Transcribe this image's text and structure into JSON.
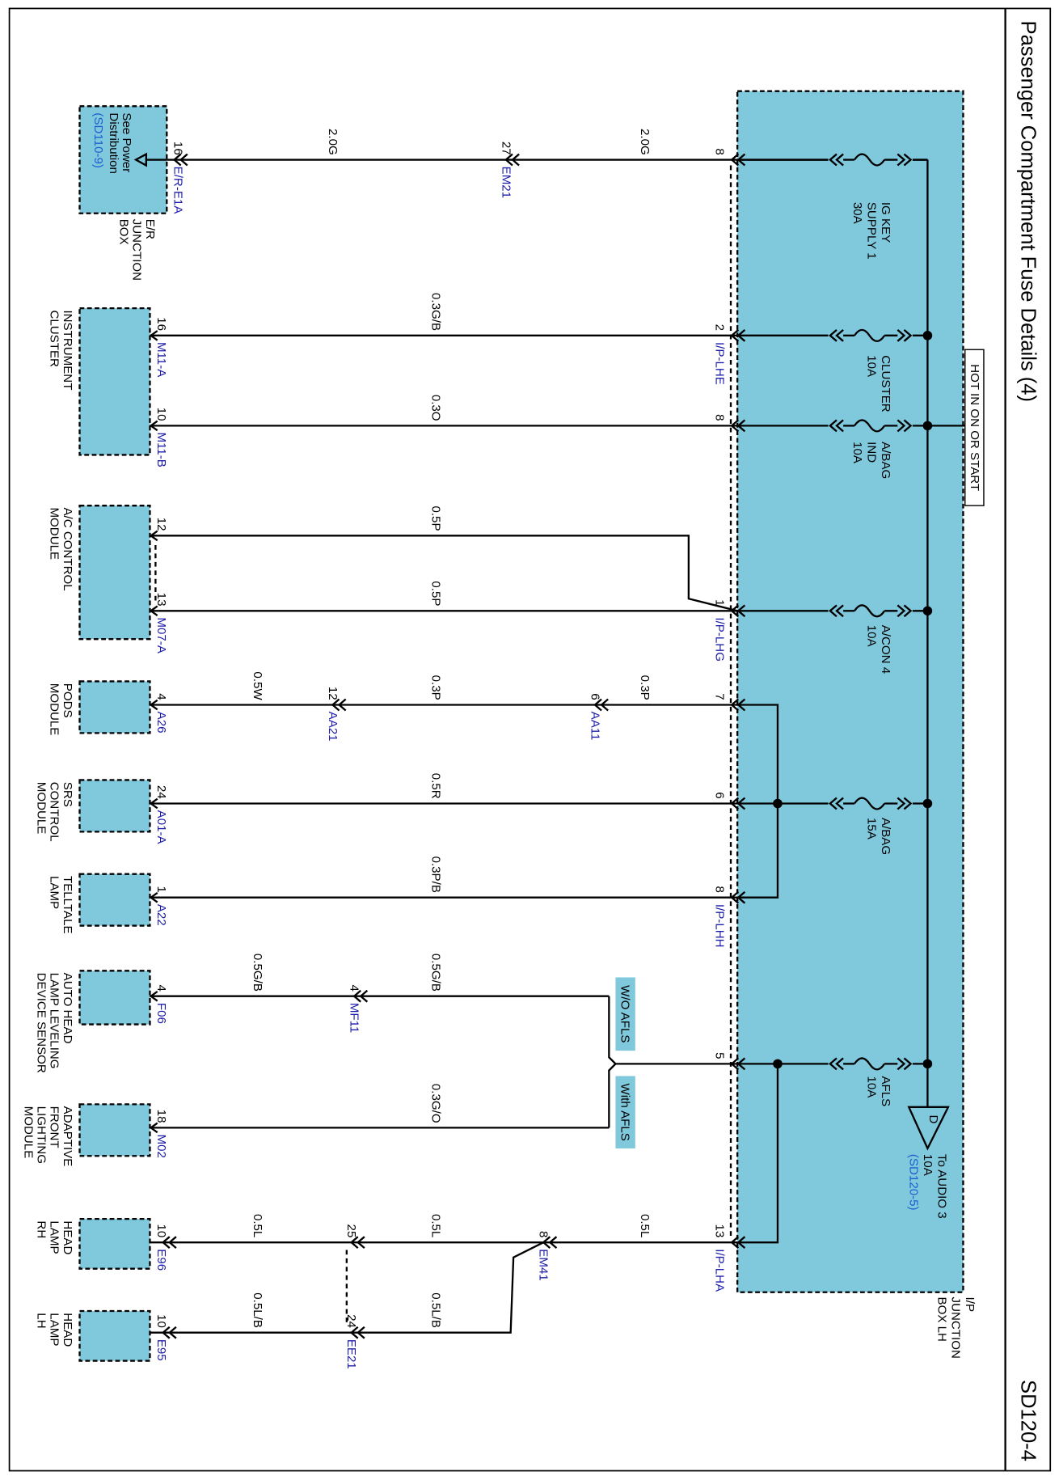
{
  "header": {
    "title": "Passenger Compartment Fuse Details (4)",
    "code": "SD120-4"
  },
  "junction_box": {
    "label": [
      "I/P",
      "JUNCTION",
      "BOX LH"
    ],
    "hot_label": "HOT IN ON OR START"
  },
  "fuses": [
    {
      "label": [
        "IG KEY",
        "SUPPLY 1",
        "30A"
      ]
    },
    {
      "label": [
        "CLUSTER",
        "10A"
      ]
    },
    {
      "label": [
        "A/BAG",
        "IND",
        "10A"
      ]
    },
    {
      "label": [
        "A/CON 4",
        "10A"
      ]
    },
    {
      "label": [
        "A/BAG",
        "15A"
      ]
    },
    {
      "label": [
        "AFLS",
        "10A"
      ]
    }
  ],
  "output": {
    "symbol": "D",
    "label": [
      "To AUDIO 3",
      "10A"
    ],
    "ref": "(SD120-5)"
  },
  "components": [
    {
      "label": [
        "E/R",
        "JUNCTION",
        "BOX"
      ],
      "inner": [
        "See Power",
        "Distribution"
      ],
      "ref": "(SD110-9)"
    },
    {
      "label": [
        "INSTRUMENT",
        "CLUSTER"
      ]
    },
    {
      "label": [
        "A/C CONTROL",
        "MODULE"
      ]
    },
    {
      "label": [
        "PODS",
        "MODULE"
      ]
    },
    {
      "label": [
        "SRS",
        "CONTROL",
        "MODULE"
      ]
    },
    {
      "label": [
        "TELLTALE",
        "LAMP"
      ]
    },
    {
      "label": [
        "AUTO HEAD",
        "LAMP LEVELING",
        "DEVICE SENSOR"
      ]
    },
    {
      "label": [
        "ADAPTIVE",
        "FRONT",
        "LIGHTING",
        "MODULE"
      ]
    },
    {
      "label": [
        "HEAD",
        "LAMP",
        "RH"
      ]
    },
    {
      "label": [
        "HEAD",
        "LAMP",
        "LH"
      ]
    }
  ],
  "pins": [
    "16",
    "27",
    "8",
    "16",
    "2",
    "10",
    "8",
    "12",
    "13",
    "1",
    "4",
    "12",
    "6",
    "7",
    "24",
    "6",
    "1",
    "8",
    "4",
    "4",
    "5",
    "18",
    "10",
    "25",
    "8",
    "13",
    "10",
    "24"
  ],
  "connectors": [
    "E/R-E1A",
    "EM21",
    "M11-A",
    "I/P-LHE",
    "M11-B",
    "M07-A",
    "I/P-LHG",
    "A26",
    "AA21",
    "AA11",
    "A01-A",
    "A22",
    "I/P-LHH",
    "F06",
    "MF11",
    "M02",
    "E96",
    "EM41",
    "I/P-LHA",
    "E95",
    "EE21"
  ],
  "wires": [
    "2.0G",
    "2.0G",
    "0.3G/B",
    "0.3O",
    "0.5P",
    "0.5P",
    "0.5W",
    "0.3P",
    "0.3P",
    "0.5R",
    "0.3P/B",
    "0.5G/B",
    "0.5G/B",
    "0.3G/O",
    "0.5L",
    "0.5L",
    "0.5L",
    "0.5L/B",
    "0.5L/B"
  ],
  "options": [
    "W/O AFLS",
    "With AFLS"
  ]
}
